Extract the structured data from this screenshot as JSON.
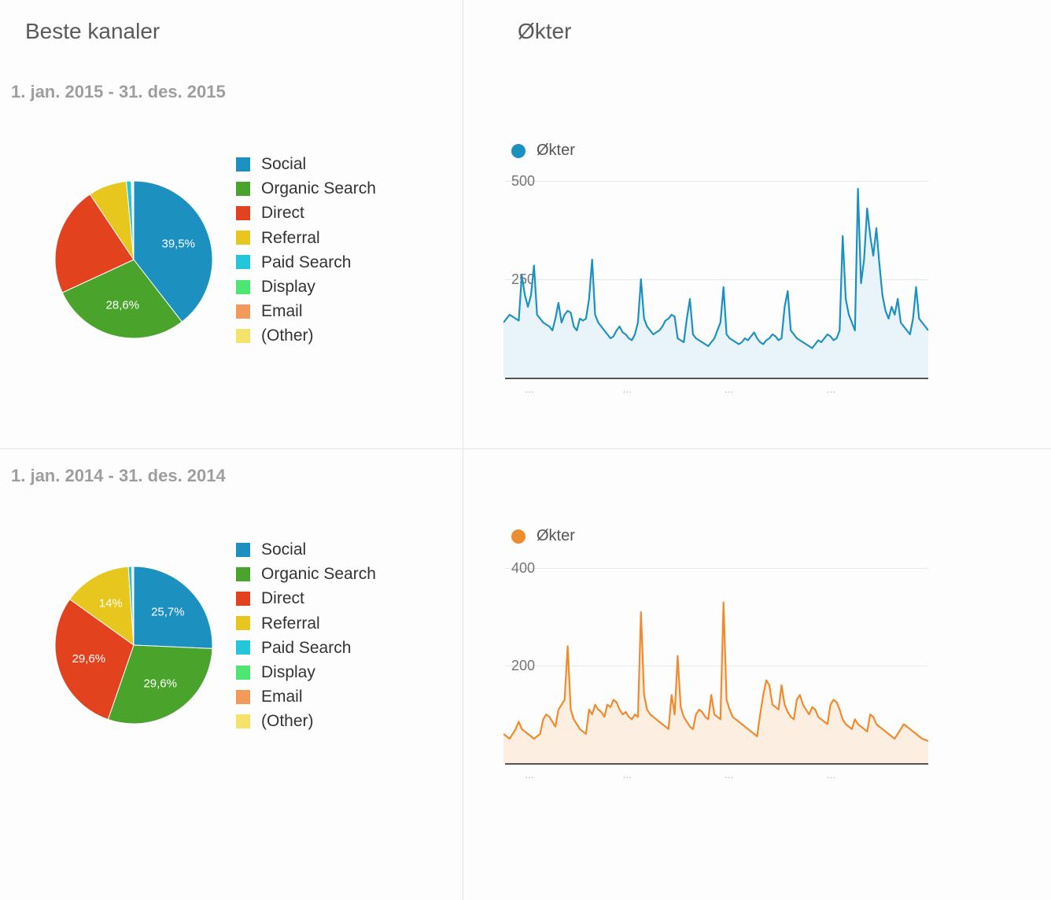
{
  "titles": {
    "channels": "Beste kanaler",
    "sessions": "Økter"
  },
  "dateLabels": {
    "y2015": "1. jan. 2015 - 31. des. 2015",
    "y2014": "1. jan. 2014 - 31. des. 2014"
  },
  "colors": {
    "background": "#ffffff",
    "divider": "#e5e5e5",
    "title": "#5a5a5a",
    "date": "#9e9e9e",
    "grid": "#e8e8e8",
    "axis": "#555555",
    "ytick": "#757575"
  },
  "channelPalette": {
    "Social": "#1c91c0",
    "Organic Search": "#4aa42c",
    "Direct": "#e2431e",
    "Referral": "#e7c71d",
    "Paid Search": "#26c6da",
    "Display": "#4de673",
    "Email": "#f39a5b",
    "(Other)": "#f4e36a"
  },
  "legendOrder": [
    "Social",
    "Organic Search",
    "Direct",
    "Referral",
    "Paid Search",
    "Display",
    "Email",
    "(Other)"
  ],
  "pie2015": {
    "type": "pie",
    "slices": [
      {
        "label": "Social",
        "value": 39.5,
        "showLabel": "39,5%"
      },
      {
        "label": "Organic Search",
        "value": 28.6,
        "showLabel": "28,6%"
      },
      {
        "label": "Direct",
        "value": 22.5
      },
      {
        "label": "Referral",
        "value": 7.9
      },
      {
        "label": "Paid Search",
        "value": 1.0
      },
      {
        "label": "Display",
        "value": 0.2
      },
      {
        "label": "Email",
        "value": 0.2
      },
      {
        "label": "(Other)",
        "value": 0.1
      }
    ],
    "labelColor": "#ffffff",
    "labelFontSize": 15
  },
  "pie2014": {
    "type": "pie",
    "slices": [
      {
        "label": "Social",
        "value": 25.7,
        "showLabel": "25,7%"
      },
      {
        "label": "Organic Search",
        "value": 29.6,
        "showLabel": "29,6%"
      },
      {
        "label": "Direct",
        "value": 29.6,
        "showLabel": "29,6%"
      },
      {
        "label": "Referral",
        "value": 14.0,
        "showLabel": "14%"
      },
      {
        "label": "Paid Search",
        "value": 0.7
      },
      {
        "label": "Display",
        "value": 0.2
      },
      {
        "label": "Email",
        "value": 0.1
      },
      {
        "label": "(Other)",
        "value": 0.1
      }
    ],
    "labelColor": "#ffffff",
    "labelFontSize": 15
  },
  "sessions2015": {
    "type": "area-line",
    "legend": "Økter",
    "lineColor": "#1c91c0",
    "fillColor": "#e8f3fa",
    "dotColor": "#1c91c0",
    "ymax": 520,
    "yticks": [
      {
        "v": 250,
        "label": "250"
      },
      {
        "v": 500,
        "label": "500"
      }
    ],
    "values": [
      140,
      150,
      160,
      155,
      150,
      145,
      260,
      210,
      180,
      210,
      285,
      160,
      150,
      140,
      135,
      130,
      120,
      150,
      190,
      140,
      160,
      170,
      165,
      130,
      120,
      150,
      145,
      150,
      200,
      300,
      160,
      140,
      130,
      120,
      110,
      100,
      105,
      120,
      130,
      115,
      110,
      100,
      95,
      110,
      140,
      250,
      150,
      130,
      120,
      110,
      115,
      120,
      130,
      145,
      150,
      160,
      155,
      100,
      95,
      90,
      150,
      200,
      110,
      100,
      95,
      90,
      85,
      80,
      90,
      100,
      120,
      140,
      230,
      110,
      100,
      95,
      90,
      85,
      90,
      100,
      95,
      105,
      115,
      100,
      90,
      85,
      95,
      100,
      110,
      105,
      95,
      100,
      180,
      220,
      120,
      110,
      100,
      95,
      90,
      85,
      80,
      75,
      85,
      95,
      90,
      100,
      110,
      105,
      95,
      100,
      120,
      360,
      200,
      160,
      140,
      120,
      480,
      240,
      300,
      430,
      360,
      310,
      380,
      290,
      210,
      170,
      150,
      180,
      160,
      200,
      140,
      130,
      120,
      110,
      150,
      230,
      150,
      140,
      130,
      120
    ]
  },
  "sessions2014": {
    "type": "area-line",
    "legend": "Økter",
    "lineColor": "#ed8b2e",
    "fillColor": "#fcefe2",
    "dotColor": "#ed8b2e",
    "ymax": 420,
    "yticks": [
      {
        "v": 200,
        "label": "200"
      },
      {
        "v": 400,
        "label": "400"
      }
    ],
    "values": [
      60,
      55,
      50,
      60,
      70,
      85,
      70,
      65,
      60,
      55,
      50,
      55,
      60,
      90,
      100,
      95,
      85,
      75,
      110,
      120,
      130,
      240,
      110,
      90,
      80,
      70,
      65,
      60,
      110,
      100,
      120,
      110,
      105,
      95,
      120,
      115,
      130,
      125,
      110,
      100,
      105,
      95,
      90,
      100,
      95,
      310,
      140,
      110,
      100,
      95,
      90,
      85,
      80,
      75,
      70,
      140,
      100,
      220,
      115,
      95,
      85,
      75,
      70,
      100,
      110,
      105,
      95,
      90,
      140,
      100,
      95,
      90,
      330,
      130,
      110,
      95,
      90,
      85,
      80,
      75,
      70,
      65,
      60,
      55,
      100,
      140,
      170,
      160,
      120,
      115,
      110,
      160,
      120,
      105,
      95,
      90,
      130,
      140,
      120,
      110,
      100,
      115,
      110,
      95,
      90,
      85,
      80,
      120,
      130,
      125,
      110,
      90,
      80,
      75,
      70,
      90,
      80,
      75,
      70,
      65,
      100,
      95,
      80,
      75,
      70,
      65,
      60,
      55,
      50,
      60,
      70,
      80,
      75,
      70,
      65,
      60,
      55,
      50,
      48,
      45
    ]
  }
}
